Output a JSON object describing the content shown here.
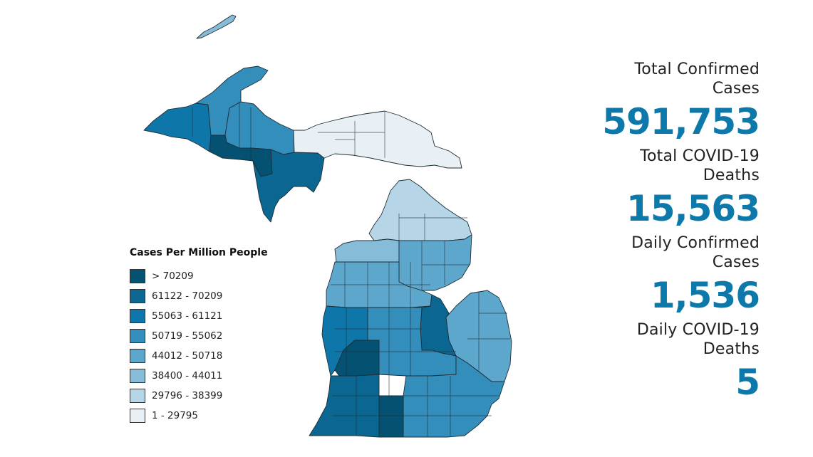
{
  "legend": {
    "title": "Cases Per Million People",
    "items": [
      {
        "label": "> 70209",
        "color": "#045172"
      },
      {
        "label": "61122 - 70209",
        "color": "#0b6792"
      },
      {
        "label": "55063 - 61121",
        "color": "#0f76aa"
      },
      {
        "label": "50719 - 55062",
        "color": "#338ebb"
      },
      {
        "label": "44012 - 50718",
        "color": "#5ea7cc"
      },
      {
        "label": "38400 - 44011",
        "color": "#87bcd8"
      },
      {
        "label": "29796 - 38399",
        "color": "#b6d6e7"
      },
      {
        "label": "1 - 29795",
        "color": "#e8f0f6"
      }
    ]
  },
  "stats": [
    {
      "label_line1": "Total Confirmed",
      "label_line2": "Cases",
      "value": "591,753"
    },
    {
      "label_line1": "Total COVID-19",
      "label_line2": "Deaths",
      "value": "15,563"
    },
    {
      "label_line1": "Daily Confirmed",
      "label_line2": "Cases",
      "value": "1,536"
    },
    {
      "label_line1": "Daily COVID-19",
      "label_line2": "Deaths",
      "value": "5"
    }
  ],
  "map": {
    "regions": [
      {
        "name": "isle-royale",
        "bin": 5
      },
      {
        "name": "western-upper-peninsula",
        "bin": 2
      },
      {
        "name": "keweenaw",
        "bin": 3
      },
      {
        "name": "central-upper-peninsula-north",
        "bin": 3
      },
      {
        "name": "central-upper-peninsula-south",
        "bin": 0
      },
      {
        "name": "menominee-area",
        "bin": 1
      },
      {
        "name": "eastern-upper-peninsula",
        "bin": 7
      },
      {
        "name": "northern-lower-peninsula",
        "bin": 6
      },
      {
        "name": "northwest-lower",
        "bin": 5
      },
      {
        "name": "northeast-lower",
        "bin": 4
      },
      {
        "name": "central-lower",
        "bin": 4
      },
      {
        "name": "thumb",
        "bin": 4
      },
      {
        "name": "west-michigan",
        "bin": 2
      },
      {
        "name": "grand-rapids-area",
        "bin": 0
      },
      {
        "name": "saginaw-bay-area",
        "bin": 1
      },
      {
        "name": "south-central",
        "bin": 3
      },
      {
        "name": "southwest",
        "bin": 1
      },
      {
        "name": "southeast",
        "bin": 3
      },
      {
        "name": "kalamazoo-area",
        "bin": 0
      }
    ]
  }
}
